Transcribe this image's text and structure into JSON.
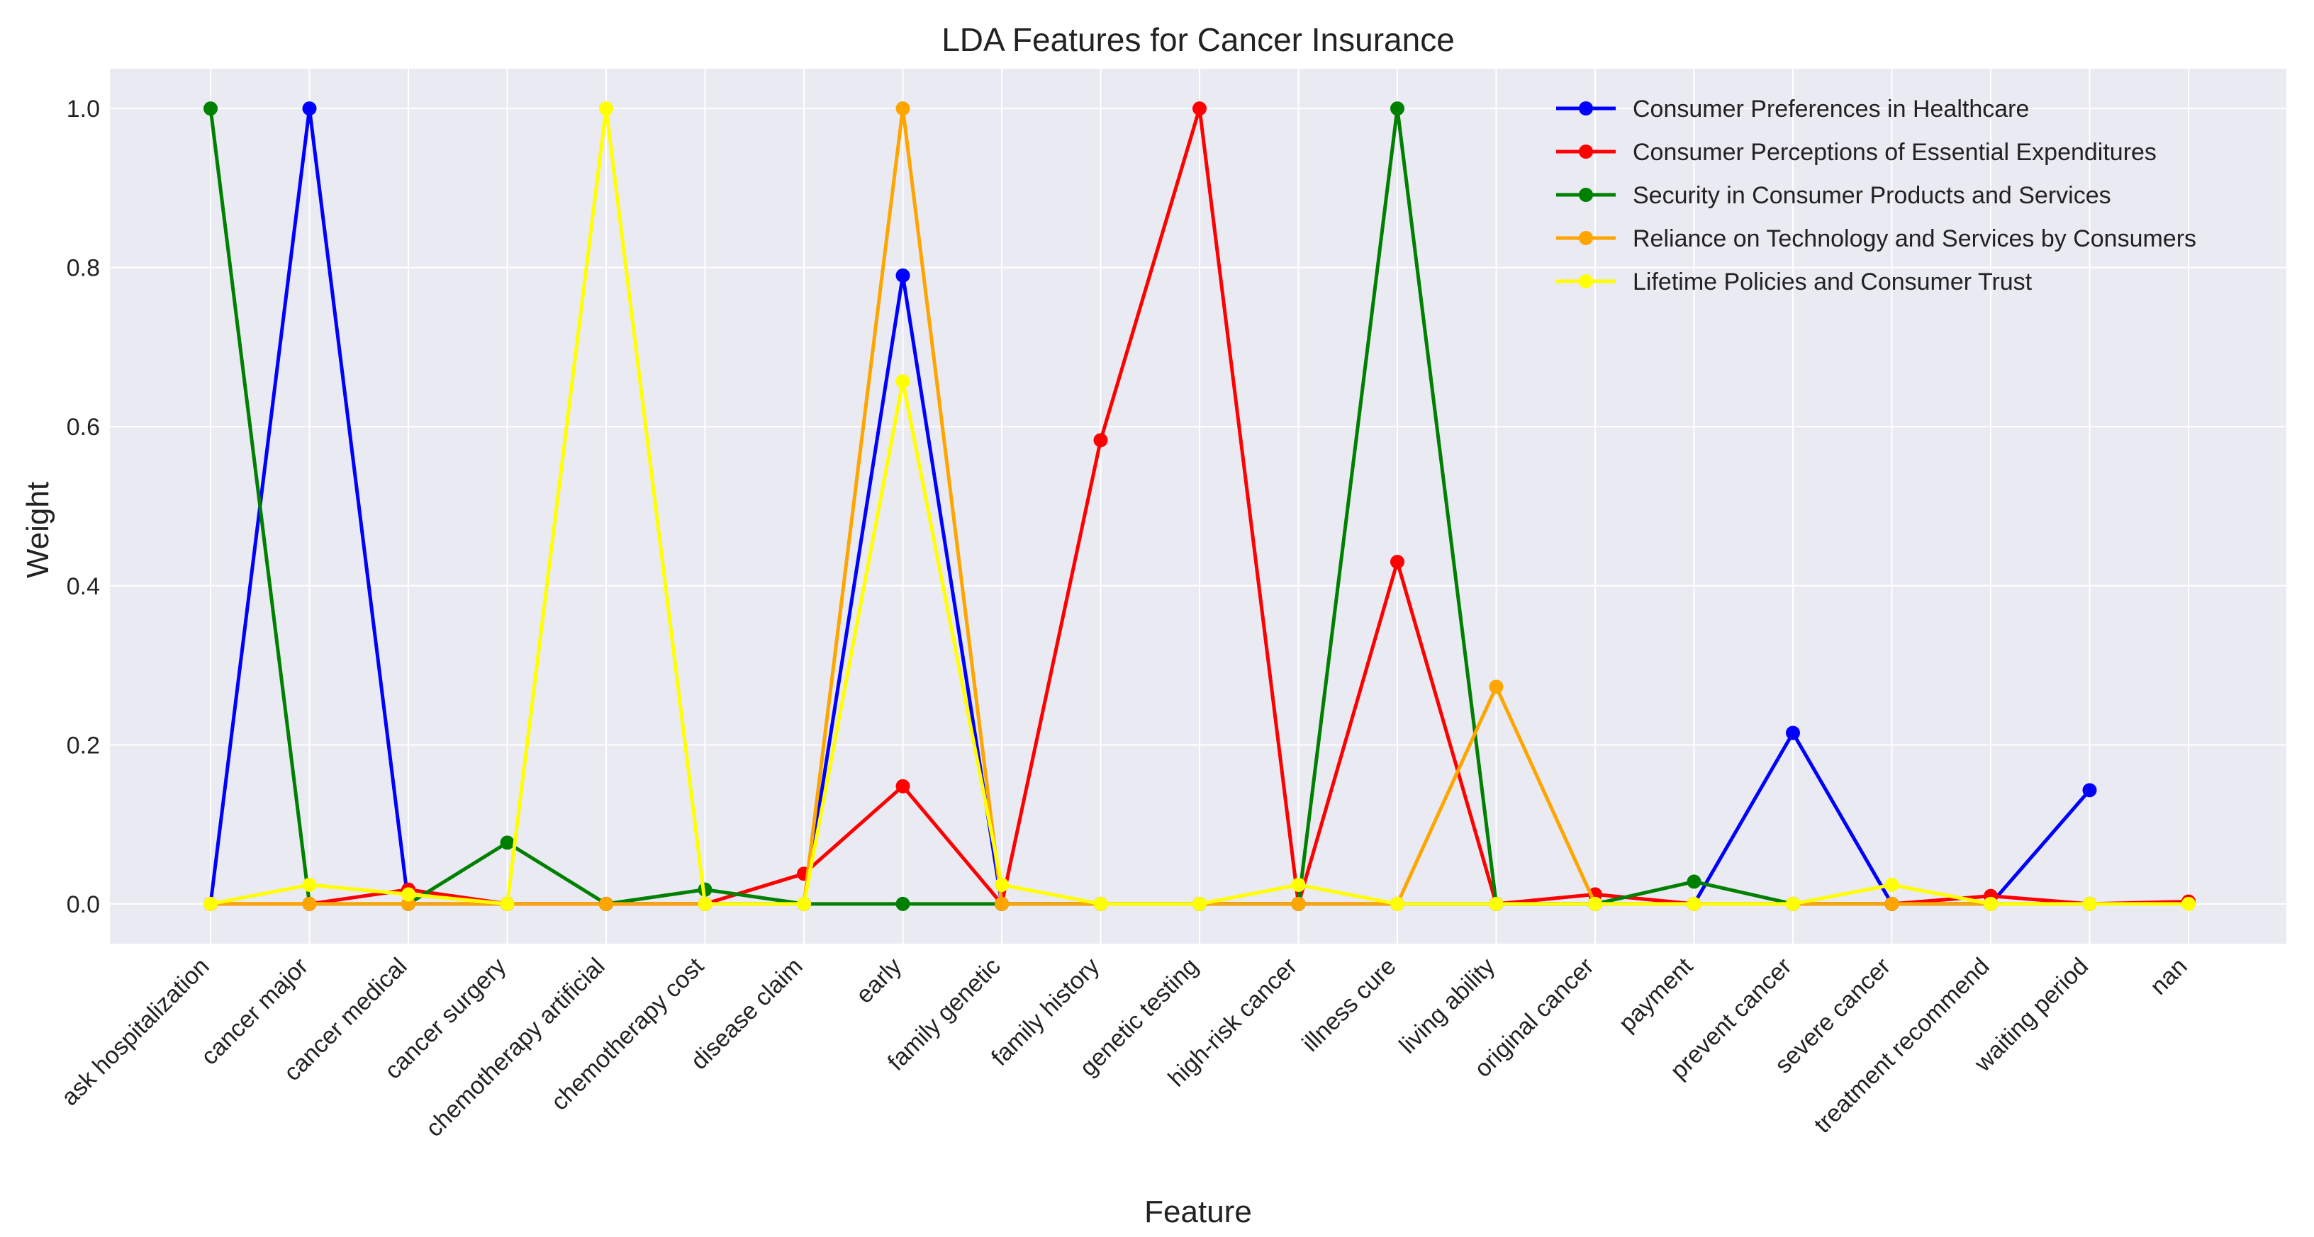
{
  "chart_data": {
    "type": "line",
    "title": "LDA Features for Cancer Insurance",
    "xlabel": "Feature",
    "ylabel": "Weight",
    "ylim": [
      -0.05,
      1.05
    ],
    "yticks": [
      "0.0",
      "0.2",
      "0.4",
      "0.6",
      "0.8",
      "1.0"
    ],
    "grid": true,
    "legend_position": "top-right",
    "categories": [
      "ask hospitalization",
      "cancer major",
      "cancer medical",
      "cancer surgery",
      "chemotherapy artificial",
      "chemotherapy cost",
      "disease claim",
      "early",
      "family genetic",
      "family history",
      "genetic testing",
      "high-risk cancer",
      "illness cure",
      "living ability",
      "original cancer",
      "payment",
      "prevent cancer",
      "severe cancer",
      "treatment recommend",
      "waiting period",
      "nan"
    ],
    "series": [
      {
        "name": "Consumer Preferences in Healthcare",
        "color": "#0000ff",
        "values": [
          0,
          1.0,
          0,
          0,
          0,
          0,
          0,
          0.79,
          0,
          0,
          0,
          0,
          0,
          0,
          0,
          0,
          0.215,
          0,
          0,
          0.143,
          null
        ]
      },
      {
        "name": "Consumer Perceptions of Essential Expenditures",
        "color": "#ff0000",
        "values": [
          0,
          0,
          0.018,
          0,
          0,
          0,
          0.038,
          0.148,
          0,
          0.583,
          1.0,
          0,
          0.43,
          0,
          0.012,
          0,
          0,
          0,
          0.01,
          0,
          0.003
        ]
      },
      {
        "name": "Security in Consumer Products and Services",
        "color": "#008000",
        "values": [
          1.0,
          0,
          0,
          0.077,
          0,
          0.018,
          0,
          0,
          0,
          0,
          0,
          0,
          1.0,
          0,
          0,
          0.028,
          0,
          0,
          0,
          0,
          null
        ]
      },
      {
        "name": "Reliance on Technology and Services by Consumers",
        "color": "#ffa500",
        "values": [
          0,
          0,
          0,
          0,
          0,
          0,
          0,
          1.0,
          0,
          0,
          0,
          0,
          0,
          0.273,
          0,
          0,
          0,
          0,
          0,
          0,
          null
        ]
      },
      {
        "name": "Lifetime Policies and Consumer Trust",
        "color": "#ffff00",
        "values": [
          0,
          0.024,
          0.012,
          0,
          1.0,
          0,
          0,
          0.657,
          0.024,
          0,
          0,
          0.024,
          0,
          0,
          0,
          0,
          0,
          0.024,
          0,
          0,
          0
        ]
      }
    ]
  }
}
